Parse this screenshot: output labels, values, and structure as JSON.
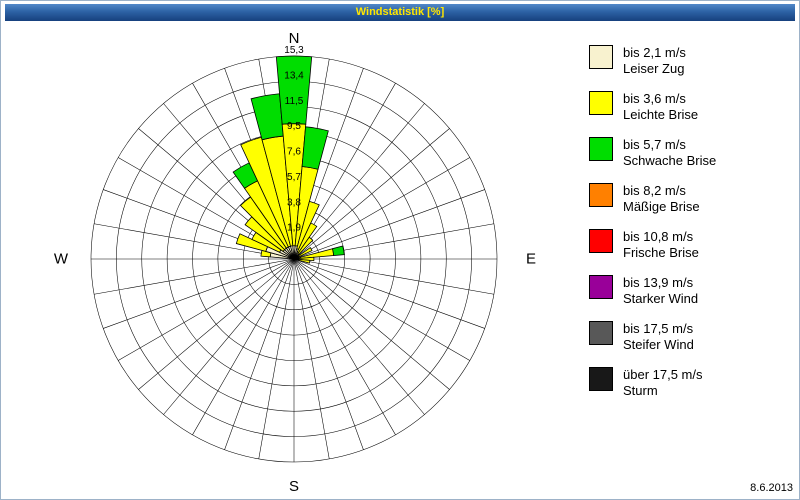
{
  "header": {
    "title": "Windstatistik [%]"
  },
  "compass": {
    "north": "N",
    "south": "S",
    "west": "W",
    "east": "E"
  },
  "footer": {
    "date": "8.6.2013"
  },
  "colors": {
    "titlebar_top": "#5289c9",
    "titlebar_bottom": "#16407e",
    "titlebar_text": "#ffe600",
    "grid": "#000000",
    "background": "#ffffff"
  },
  "chart_data": {
    "type": "windrose",
    "title": "Windstatistik [%]",
    "unit": "%",
    "sectors": 36,
    "sector_width_deg": 10,
    "grid": "polar, 36 spokes, 8 rings",
    "ring_labels": [
      "1,9",
      "3,8",
      "5,7",
      "7,6",
      "9,5",
      "11,5",
      "13,4",
      "15,3"
    ],
    "ring_values": [
      1.9,
      3.8,
      5.7,
      7.6,
      9.5,
      11.5,
      13.4,
      15.3
    ],
    "max_value": 15.3,
    "legend_position": "right",
    "speed_bins": [
      {
        "speed": "bis 2,1 m/s",
        "name": "Leiser Zug",
        "color": "#f8f2cf"
      },
      {
        "speed": "bis 3,6 m/s",
        "name": "Leichte Brise",
        "color": "#ffff00"
      },
      {
        "speed": "bis 5,7 m/s",
        "name": "Schwache Brise",
        "color": "#00dd00"
      },
      {
        "speed": "bis 8,2 m/s",
        "name": "Mäßige Brise",
        "color": "#ff8000"
      },
      {
        "speed": "bis 10,8 m/s",
        "name": "Frische Brise",
        "color": "#ff0000"
      },
      {
        "speed": "bis 13,9 m/s",
        "name": "Starker Wind",
        "color": "#990099"
      },
      {
        "speed": "bis 17,5 m/s",
        "name": "Steifer Wind",
        "color": "#585858"
      },
      {
        "speed": "über 17,5 m/s",
        "name": "Sturm",
        "color": "#181818"
      }
    ],
    "petals": [
      {
        "dir": 280,
        "values": [
          1.8,
          0.7,
          0,
          0,
          0,
          0,
          0,
          0
        ]
      },
      {
        "dir": 290,
        "values": [
          2.2,
          2.3,
          0,
          0,
          0,
          0,
          0,
          0
        ]
      },
      {
        "dir": 300,
        "values": [
          1.2,
          2.3,
          0,
          0,
          0,
          0,
          0,
          0
        ]
      },
      {
        "dir": 310,
        "values": [
          1.0,
          3.5,
          0,
          0,
          0,
          0,
          0,
          0
        ]
      },
      {
        "dir": 320,
        "values": [
          1.0,
          4.7,
          0,
          0,
          0,
          0,
          0,
          0
        ]
      },
      {
        "dir": 330,
        "values": [
          1.0,
          5.5,
          1.5,
          0,
          0,
          0,
          0,
          0
        ]
      },
      {
        "dir": 340,
        "values": [
          1.0,
          8.5,
          0,
          0,
          0,
          0,
          0,
          0
        ]
      },
      {
        "dir": 350,
        "values": [
          1.0,
          8.3,
          3.2,
          0,
          0,
          0,
          0,
          0
        ]
      },
      {
        "dir": 0,
        "values": [
          1.0,
          9.2,
          5.1,
          0,
          0,
          0,
          0,
          0
        ]
      },
      {
        "dir": 10,
        "values": [
          1.0,
          6.0,
          3.0,
          0,
          0,
          0,
          0,
          0
        ]
      },
      {
        "dir": 20,
        "values": [
          0.8,
          3.7,
          0,
          0,
          0,
          0,
          0,
          0
        ]
      },
      {
        "dir": 30,
        "values": [
          0.6,
          2.4,
          0,
          0,
          0,
          0,
          0,
          0
        ]
      },
      {
        "dir": 40,
        "values": [
          0.5,
          1.5,
          0,
          0,
          0,
          0,
          0,
          0
        ]
      },
      {
        "dir": 60,
        "values": [
          0.4,
          1.1,
          0,
          0,
          0,
          0,
          0,
          0
        ]
      },
      {
        "dir": 80,
        "values": [
          0.5,
          2.5,
          0.8,
          0,
          0,
          0,
          0,
          0
        ]
      },
      {
        "dir": 90,
        "values": [
          0.4,
          1.1,
          0,
          0,
          0,
          0,
          0,
          0
        ]
      },
      {
        "dir": 100,
        "values": [
          0.3,
          0.9,
          0,
          0,
          0,
          0,
          0,
          0
        ]
      }
    ]
  }
}
